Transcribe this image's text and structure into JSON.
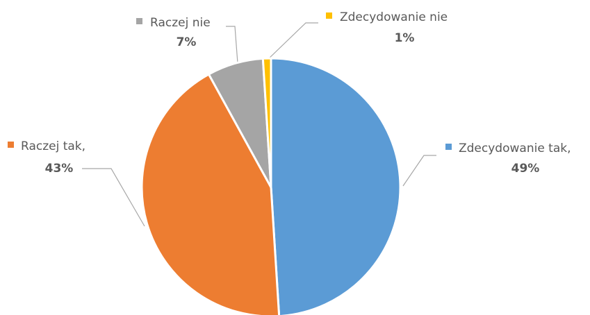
{
  "chart_data": {
    "type": "pie",
    "categories": [
      "Zdecydowanie tak,",
      "Raczej tak,",
      "Raczej nie",
      "Zdecydowanie nie"
    ],
    "values": [
      49,
      43,
      7,
      1
    ],
    "value_labels": [
      "49%",
      "43%",
      "7%",
      "1%"
    ],
    "colors": [
      "#5b9bd5",
      "#ed7d31",
      "#a5a5a5",
      "#ffc000"
    ]
  }
}
